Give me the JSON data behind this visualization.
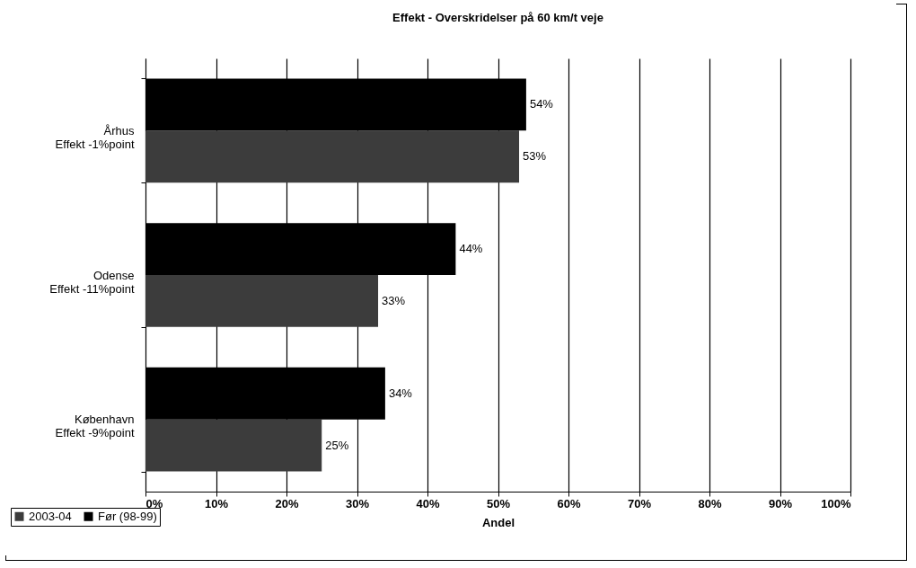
{
  "chart_data": {
    "type": "bar",
    "orientation": "horizontal",
    "title": "Effekt - Overskridelser på 60 km/t veje",
    "xlabel": "Andel",
    "categories": [
      "Århus\nEffekt -1%point",
      "Odense\nEffekt -11%point",
      "København\nEffekt -9%point"
    ],
    "series": [
      {
        "name": "2003-04",
        "color": "#3c3c3c",
        "values": [
          53,
          33,
          25
        ],
        "value_labels": [
          "53%",
          "33%",
          "25%"
        ]
      },
      {
        "name": "Før (98-99)",
        "color": "#000000",
        "values": [
          54,
          44,
          34
        ],
        "value_labels": [
          "54%",
          "44%",
          "34%"
        ]
      }
    ],
    "xlim": [
      0,
      100
    ],
    "xticks": [
      {
        "value": 0,
        "label": "0%"
      },
      {
        "value": 10,
        "label": "10%"
      },
      {
        "value": 20,
        "label": "20%"
      },
      {
        "value": 30,
        "label": "30%"
      },
      {
        "value": 40,
        "label": "40%"
      },
      {
        "value": 50,
        "label": "50%"
      },
      {
        "value": 60,
        "label": "60%"
      },
      {
        "value": 70,
        "label": "70%"
      },
      {
        "value": 80,
        "label": "80%"
      },
      {
        "value": 90,
        "label": "90%"
      },
      {
        "value": 100,
        "label": "100%"
      }
    ],
    "grid": "x",
    "legend": "bottom left"
  }
}
